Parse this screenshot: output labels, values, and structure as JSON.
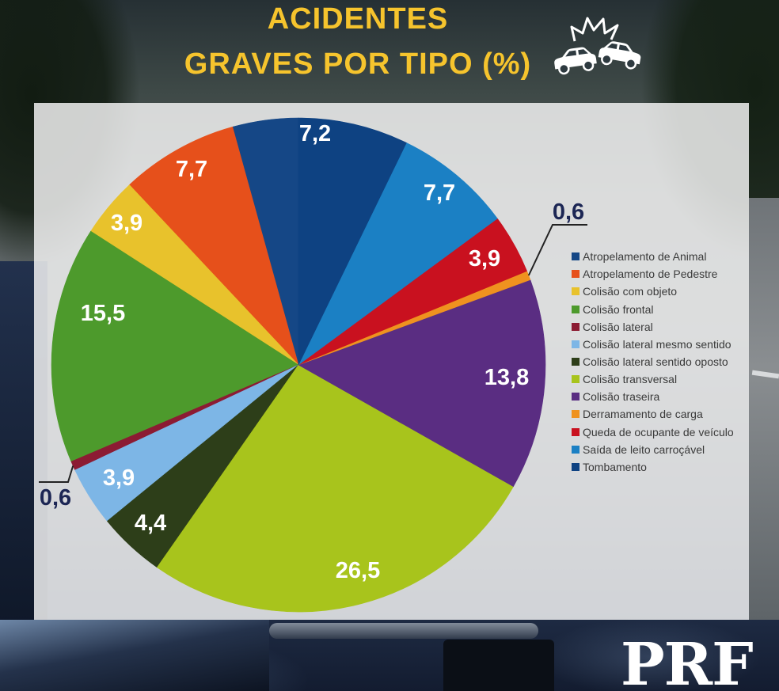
{
  "header": {
    "icon": "car-crash-icon"
  },
  "logo": {
    "text": "PRF"
  },
  "colors": {
    "title": "#f6c42d",
    "inside_label": "#ffffff",
    "outside_label": "#1c2654",
    "leader": "#222222"
  },
  "chart_data": {
    "type": "pie",
    "title_lines": [
      "ACIDENTES",
      "GRAVES POR TIPO (%)"
    ],
    "direction": "counterclockwise",
    "legend": "right",
    "slices": [
      {
        "name": "Atropelamento de Animal",
        "value": 4.3,
        "label": "",
        "color": "#154786"
      },
      {
        "name": "Atropelamento de Pedestre",
        "value": 7.7,
        "label": "7,7",
        "color": "#e6501b"
      },
      {
        "name": "Colisão com objeto",
        "value": 3.9,
        "label": "3,9",
        "color": "#e8c22c"
      },
      {
        "name": "Colisão frontal",
        "value": 15.5,
        "label": "15,5",
        "color": "#4d9a2c"
      },
      {
        "name": "Colisão lateral",
        "value": 0.6,
        "label": "0,6",
        "color": "#8c1b33"
      },
      {
        "name": "Colisão lateral mesmo sentido",
        "value": 3.9,
        "label": "3,9",
        "color": "#7db6e6"
      },
      {
        "name": "Colisão lateral sentido oposto",
        "value": 4.4,
        "label": "4,4",
        "color": "#2d3e19"
      },
      {
        "name": "Colisão transversal",
        "value": 26.5,
        "label": "26,5",
        "color": "#a8c41c"
      },
      {
        "name": "Colisão traseira",
        "value": 13.8,
        "label": "13,8",
        "color": "#5a2d82"
      },
      {
        "name": "Derramamento de carga",
        "value": 0.6,
        "label": "0,6",
        "color": "#ef921f"
      },
      {
        "name": "Queda de ocupante de veículo",
        "value": 3.9,
        "label": "3,9",
        "color": "#c9111f"
      },
      {
        "name": "Saída de leito carroçável",
        "value": 7.7,
        "label": "7,7",
        "color": "#1b80c4"
      },
      {
        "name": "Tombamento",
        "value": 7.2,
        "label": "7,2",
        "color": "#0e4282"
      }
    ]
  }
}
